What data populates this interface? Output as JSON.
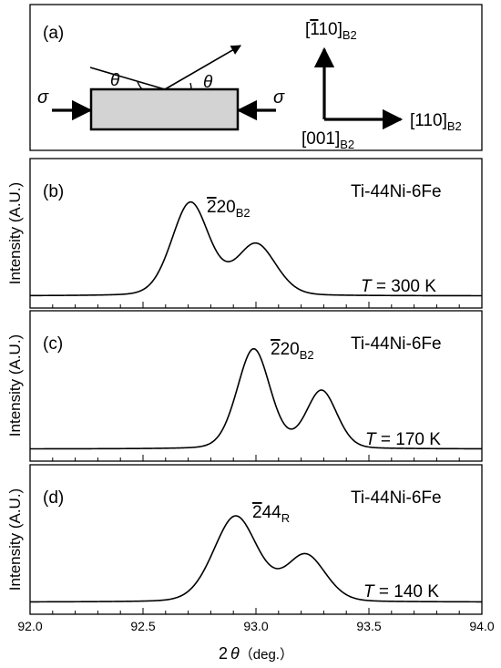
{
  "schematic": {
    "panel_label": "(a)",
    "theta_symbol": "θ",
    "sigma_symbol": "σ",
    "dir_up": {
      "main": "[",
      "bar_digit": "1",
      "rest": "10]",
      "sub": "B2"
    },
    "dir_right": {
      "main": "[110]",
      "sub": "B2"
    },
    "dir_out": {
      "main": "[001]",
      "sub": "B2"
    }
  },
  "chart_data": [
    {
      "type": "line",
      "panel_label": "(b)",
      "sample": "Ti-44Ni-6Fe",
      "temperature": {
        "symbol": "T",
        "text": " = 300 K"
      },
      "peak_label": {
        "bar_digit": "2",
        "rest": "20",
        "sub": "B2"
      },
      "ylabel": "Intensity (A.U.)",
      "xlim": [
        92.0,
        94.0
      ],
      "ylim": [
        0,
        1
      ],
      "y_ticks_shown": false,
      "peaks": [
        {
          "center": 92.71,
          "height": 0.76,
          "width": 0.085
        },
        {
          "center": 93.0,
          "height": 0.42,
          "width": 0.09
        }
      ],
      "baseline": 0.01
    },
    {
      "type": "line",
      "panel_label": "(c)",
      "sample": "Ti-44Ni-6Fe",
      "temperature": {
        "symbol": "T",
        "text": " = 170 K"
      },
      "peak_label": {
        "bar_digit": "2",
        "rest": "20",
        "sub": "B2"
      },
      "ylabel": "Intensity (A.U.)",
      "xlim": [
        92.0,
        94.0
      ],
      "ylim": [
        0,
        1
      ],
      "y_ticks_shown": false,
      "peaks": [
        {
          "center": 92.99,
          "height": 0.81,
          "width": 0.075
        },
        {
          "center": 93.29,
          "height": 0.47,
          "width": 0.07
        }
      ],
      "baseline": 0.01
    },
    {
      "type": "line",
      "panel_label": "(d)",
      "sample": "Ti-44Ni-6Fe",
      "temperature": {
        "symbol": "T",
        "text": " = 140 K"
      },
      "peak_label": {
        "bar_digit": "2",
        "rest": "44",
        "sub": "R"
      },
      "ylabel": "Intensity (A.U.)",
      "xlim": [
        92.0,
        94.0
      ],
      "ylim": [
        0,
        1
      ],
      "y_ticks_shown": false,
      "xlabel": "2θ (deg.)",
      "x_ticks": [
        "92.0",
        "92.5",
        "93.0",
        "93.5",
        "94.0"
      ],
      "peaks": [
        {
          "center": 92.91,
          "height": 0.7,
          "width": 0.1
        },
        {
          "center": 93.22,
          "height": 0.38,
          "width": 0.09
        }
      ],
      "baseline": 0.01
    }
  ],
  "x_axis": {
    "tick_labels": [
      "92.0",
      "92.5",
      "93.0",
      "93.5",
      "94.0"
    ],
    "label_main": "2",
    "label_theta": "θ",
    "label_unit": "（deg.）"
  }
}
